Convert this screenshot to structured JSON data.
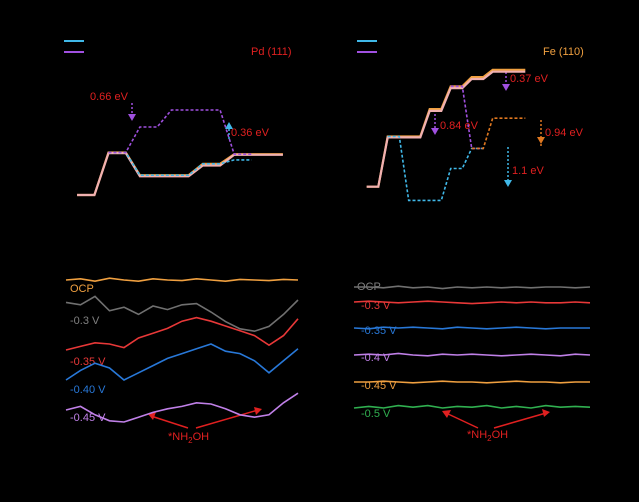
{
  "colors": {
    "background": "#000000",
    "orange": "#f0a040",
    "orange_dark": "#e07820",
    "pink": "#f0b0b0",
    "blue": "#40b8e8",
    "purple": "#a050e0",
    "red_text": "#e02020",
    "gray": "#707070",
    "red_trace": "#e83838",
    "blue_trace": "#2878d8",
    "violet_trace": "#c080e8",
    "green_trace": "#30b050"
  },
  "chart_data": [
    {
      "type": "line",
      "panel": "top-left",
      "surface_label": "Pd (111)",
      "legend": [
        {
          "color": "#40b8e8",
          "text": ""
        },
        {
          "color": "#a050e0",
          "text": ""
        }
      ],
      "x": [
        1,
        2,
        3,
        4,
        5,
        6,
        7
      ],
      "series": [
        {
          "color": "#f0a040",
          "values": [
            0.0,
            0.75,
            0.35,
            0.35,
            0.55,
            0.72,
            0.72
          ]
        },
        {
          "color": "#f0b0b0",
          "values": [
            0.0,
            0.74,
            0.33,
            0.33,
            0.52,
            0.71,
            0.71
          ]
        },
        {
          "color": "#40b8e8",
          "values": [
            null,
            0.75,
            0.35,
            0.35,
            0.55,
            0.62,
            null
          ]
        },
        {
          "color": "#a050e0",
          "values": [
            null,
            0.75,
            1.2,
            1.5,
            1.5,
            0.72,
            null
          ]
        }
      ],
      "annotations": [
        {
          "text": "0.66 eV",
          "color": "#e02020"
        },
        {
          "text": "0.36 eV",
          "color": "#e02020"
        }
      ]
    },
    {
      "type": "line",
      "panel": "top-right",
      "surface_label": "Fe (110)",
      "legend": [
        {
          "color": "#40b8e8",
          "text": ""
        },
        {
          "color": "#a050e0",
          "text": ""
        }
      ],
      "x": [
        1,
        2,
        3,
        4,
        5,
        6,
        7,
        8
      ],
      "series": [
        {
          "color": "#f0a040",
          "values": [
            0.0,
            0.55,
            0.55,
            0.85,
            1.1,
            1.2,
            1.28,
            1.28
          ]
        },
        {
          "color": "#f0b0b0",
          "values": [
            0.0,
            0.54,
            0.54,
            0.83,
            1.08,
            1.18,
            1.26,
            1.26
          ]
        },
        {
          "color": "#40b8e8",
          "values": [
            null,
            0.55,
            -0.15,
            -0.15,
            0.2,
            0.42,
            null,
            null
          ]
        },
        {
          "color": "#a050e0",
          "values": [
            null,
            null,
            null,
            null,
            1.1,
            0.42,
            null,
            null
          ]
        },
        {
          "color": "#e07820",
          "values": [
            null,
            null,
            null,
            null,
            null,
            0.42,
            0.75,
            0.75
          ]
        }
      ],
      "annotations": [
        {
          "text": "0.37 eV",
          "color": "#e02020"
        },
        {
          "text": "0.84 eV",
          "color": "#e02020"
        },
        {
          "text": "0.94 eV",
          "color": "#e02020"
        },
        {
          "text": "1.1 eV",
          "color": "#e02020"
        }
      ]
    },
    {
      "type": "line",
      "panel": "bottom-left",
      "traces": [
        {
          "label": "OCP",
          "color": "#f0a040",
          "values": [
            0.0,
            0.1,
            -0.1,
            0.15,
            0.0,
            -0.1,
            0.1,
            0.0,
            -0.05,
            0.1,
            0.0,
            -0.1,
            0.05,
            0.0,
            -0.05,
            0.05,
            0.0
          ]
        },
        {
          "label": "-0.3 V",
          "color": "#707070",
          "values": [
            -0.2,
            -0.4,
            0.3,
            -0.9,
            -0.6,
            -1.2,
            -0.5,
            -0.8,
            -0.4,
            -0.3,
            -1.0,
            -1.8,
            -2.4,
            -2.6,
            -2.2,
            -1.2,
            0.0
          ]
        },
        {
          "label": "-0.35 V",
          "color": "#e83838",
          "values": [
            0.0,
            0.3,
            0.6,
            0.5,
            0.2,
            1.0,
            1.4,
            1.8,
            2.4,
            2.7,
            2.4,
            2.0,
            1.6,
            1.2,
            0.4,
            1.2,
            2.6
          ]
        },
        {
          "label": "-0.40 V",
          "color": "#2878d8",
          "values": [
            0.0,
            0.8,
            1.4,
            1.0,
            0.0,
            0.6,
            1.2,
            1.8,
            2.2,
            2.6,
            3.0,
            2.4,
            2.2,
            1.6,
            0.6,
            1.6,
            2.6
          ]
        },
        {
          "label": "-0.45 V",
          "color": "#c080e8",
          "values": [
            0.0,
            0.3,
            -0.4,
            -0.9,
            -1.0,
            -0.6,
            -0.2,
            0.1,
            0.3,
            0.6,
            0.5,
            0.1,
            -0.4,
            -0.6,
            -0.4,
            0.6,
            1.4
          ]
        }
      ],
      "annotation": {
        "text": "*NH",
        "sub": "2",
        "tail": "OH",
        "color": "#e02020"
      }
    },
    {
      "type": "line",
      "panel": "bottom-right",
      "traces": [
        {
          "label": "OCP",
          "color": "#707070",
          "values": [
            0.0,
            0.0,
            -0.1,
            0.1,
            -0.1,
            0.0,
            -0.2,
            0.0,
            -0.1,
            0.0,
            -0.1,
            0.0,
            -0.1,
            0.0,
            0.0,
            -0.1,
            0.0
          ]
        },
        {
          "label": "-0.3 V",
          "color": "#e83838",
          "values": [
            0.0,
            0.1,
            0.0,
            -0.1,
            0.0,
            0.1,
            0.0,
            -0.1,
            -0.2,
            -0.1,
            0.0,
            -0.1,
            0.0,
            -0.1,
            -0.1,
            0.0,
            -0.1
          ]
        },
        {
          "label": "-0.35 V",
          "color": "#2878d8",
          "values": [
            0.0,
            -0.1,
            0.1,
            0.0,
            0.1,
            0.0,
            -0.1,
            0.1,
            0.0,
            -0.1,
            0.0,
            0.1,
            0.0,
            -0.1,
            0.0,
            0.0,
            0.0
          ]
        },
        {
          "label": "-0.4 V",
          "color": "#c080e8",
          "values": [
            0.0,
            0.1,
            0.0,
            0.2,
            0.0,
            -0.1,
            0.1,
            0.0,
            0.1,
            0.0,
            -0.1,
            0.0,
            0.1,
            0.0,
            -0.1,
            0.1,
            0.0
          ]
        },
        {
          "label": "-0.45 V",
          "color": "#f0a040",
          "values": [
            0.0,
            0.0,
            0.1,
            0.0,
            -0.1,
            0.0,
            0.1,
            0.0,
            0.0,
            -0.1,
            0.0,
            0.1,
            0.0,
            0.0,
            -0.1,
            0.0,
            0.0
          ]
        },
        {
          "label": "-0.5 V",
          "color": "#30b050",
          "values": [
            0.0,
            0.2,
            0.0,
            0.3,
            0.1,
            0.3,
            0.0,
            0.2,
            0.1,
            0.3,
            0.0,
            0.2,
            0.0,
            0.3,
            0.1,
            0.2,
            0.1
          ]
        }
      ],
      "annotation": {
        "text": "*NH",
        "sub": "2",
        "tail": "OH",
        "color": "#e02020"
      }
    }
  ]
}
